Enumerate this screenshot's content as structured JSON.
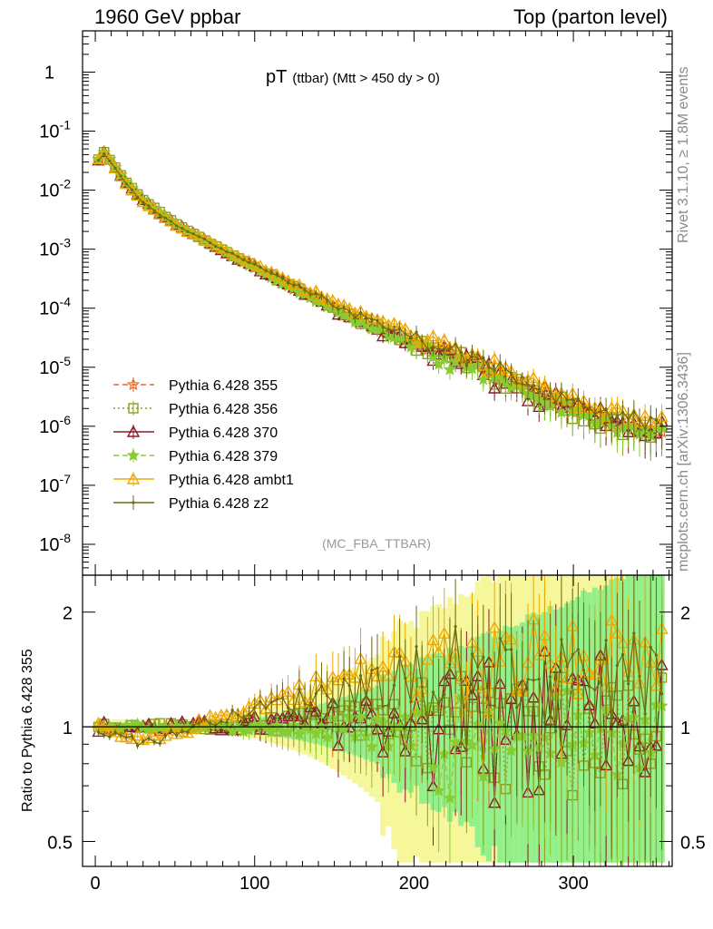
{
  "header": {
    "left": "1960 GeV ppbar",
    "right": "Top (parton level)"
  },
  "side_labels": {
    "rivet": "Rivet 3.1.10, ≥ 1.8M events",
    "mcplots": "mcplots.cern.ch [arXiv:1306.3436]"
  },
  "chart_data": [
    {
      "type": "line",
      "panel": "main",
      "title_main": "pT",
      "title_sub": "(ttbar) (Mtt > 450 dy > 0)",
      "watermark": "(MC_FBA_TTBAR)",
      "yscale": "log",
      "xlim": [
        -8,
        362
      ],
      "ylim": [
        3e-09,
        5
      ],
      "x_ticks": [
        0,
        100,
        200,
        300
      ],
      "y_tick_labels": [
        "1",
        "10^-1",
        "10^-2",
        "10^-3",
        "10^-4",
        "10^-5",
        "10^-6",
        "10^-7",
        "10^-8"
      ],
      "legend_position": "bottom-left",
      "series": [
        {
          "name": "Pythia 6.428 355",
          "color": "#ee6622",
          "marker": "star-open",
          "dash": "6,4",
          "ratio_offset": 0.0,
          "ratio_amp": 0.0
        },
        {
          "name": "Pythia 6.428 356",
          "color": "#8aa020",
          "marker": "square-open",
          "dash": "2,3",
          "ratio_offset": 0.05,
          "ratio_amp": 0.15
        },
        {
          "name": "Pythia 6.428 370",
          "color": "#8b1a2b",
          "marker": "triangle-open",
          "dash": "",
          "ratio_offset": 0.05,
          "ratio_amp": 0.22
        },
        {
          "name": "Pythia 6.428 379",
          "color": "#88cc33",
          "marker": "star-filled",
          "dash": "6,4",
          "ratio_offset": -0.02,
          "ratio_amp": 0.12
        },
        {
          "name": "Pythia 6.428 ambt1",
          "color": "#f0a800",
          "marker": "triangle-open",
          "dash": "",
          "ratio_offset": 0.45,
          "ratio_amp": 0.2
        },
        {
          "name": "Pythia 6.428 z2",
          "color": "#6b6b10",
          "marker": "dot",
          "dash": "",
          "ratio_offset": 0.35,
          "ratio_amp": 0.2
        }
      ],
      "reference_curve": {
        "x": [
          2,
          6,
          10,
          20,
          30,
          50,
          80,
          120,
          160,
          200,
          240,
          280,
          320,
          355
        ],
        "y": [
          0.033,
          0.045,
          0.03,
          0.013,
          0.0068,
          0.0027,
          0.00095,
          0.00025,
          7e-05,
          2.5e-05,
          1e-05,
          3e-06,
          1.2e-06,
          8e-07
        ]
      }
    },
    {
      "type": "line",
      "panel": "ratio",
      "ylabel": "Ratio to Pythia 6.428 355",
      "xlim": [
        -8,
        362
      ],
      "ylim": [
        0.43,
        2.5
      ],
      "y_ticks": [
        0.5,
        1,
        2
      ],
      "y_tick_labels": [
        "0.5",
        "1",
        "2"
      ],
      "reference_line": 1,
      "bands": {
        "inner_color": "#88ee88",
        "outer_color": "#f5f590"
      }
    }
  ]
}
